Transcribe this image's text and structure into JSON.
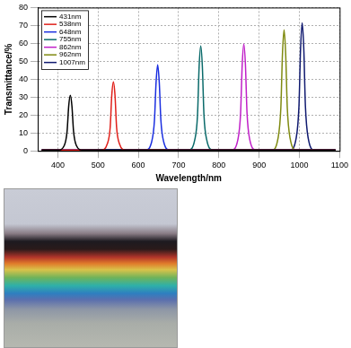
{
  "chart_data": {
    "type": "line",
    "x_label": "Wavelength/nm",
    "y_label": "Transmittance/%",
    "xlim": [
      350,
      1100
    ],
    "xticks": [
      400,
      500,
      600,
      700,
      800,
      900,
      1000,
      1100
    ],
    "ylim": [
      0,
      80
    ],
    "yticks": [
      0,
      10,
      20,
      30,
      40,
      50,
      60,
      70,
      80
    ],
    "grid": true,
    "legend": "upper left",
    "series": [
      {
        "name": "431nm",
        "color": "#000000",
        "x": [
          360,
          401,
          416,
          423,
          427,
          431,
          435,
          439,
          446,
          461,
          1090
        ],
        "values": [
          0.5,
          0.5,
          3,
          11,
          25,
          31,
          25,
          11,
          3,
          0.5,
          0.5
        ]
      },
      {
        "name": "538nm",
        "color": "#e0201a",
        "x": [
          360,
          508,
          523,
          530,
          534,
          538,
          542,
          546,
          553,
          568,
          1090
        ],
        "values": [
          0.5,
          0.5,
          4,
          13,
          31,
          38.5,
          31,
          13,
          4,
          0.5,
          0.5
        ]
      },
      {
        "name": "648nm",
        "color": "#1a2ee0",
        "x": [
          360,
          618,
          633,
          640,
          644,
          648,
          652,
          656,
          663,
          678,
          1090
        ],
        "values": [
          0.5,
          0.5,
          5,
          17,
          38,
          48,
          38,
          17,
          5,
          0.5,
          0.5
        ]
      },
      {
        "name": "755nm",
        "color": "#0a6a6a",
        "x": [
          360,
          725,
          740,
          747,
          751,
          755,
          759,
          763,
          770,
          785,
          1090
        ],
        "values": [
          0.5,
          0.5,
          6,
          20,
          47,
          58.5,
          47,
          20,
          6,
          0.5,
          0.5
        ]
      },
      {
        "name": "862nm",
        "color": "#c020c8",
        "x": [
          360,
          832,
          847,
          854,
          858,
          862,
          866,
          870,
          877,
          892,
          1090
        ],
        "values": [
          0.5,
          0.5,
          6,
          21,
          48,
          59.5,
          48,
          21,
          6,
          0.5,
          0.5
        ]
      },
      {
        "name": "962nm",
        "color": "#7f8a10",
        "x": [
          360,
          932,
          947,
          954,
          958,
          962,
          966,
          970,
          977,
          992,
          1090
        ],
        "values": [
          0.5,
          0.5,
          7,
          24,
          54,
          67.5,
          54,
          24,
          7,
          0.5,
          0.5
        ]
      },
      {
        "name": "1007nm",
        "color": "#101a70",
        "x": [
          360,
          977,
          992,
          999,
          1003,
          1007,
          1011,
          1015,
          1022,
          1037,
          1090
        ],
        "values": [
          0.5,
          0.5,
          7,
          25,
          57,
          71.5,
          57,
          25,
          7,
          0.5,
          0.5
        ]
      }
    ]
  }
}
